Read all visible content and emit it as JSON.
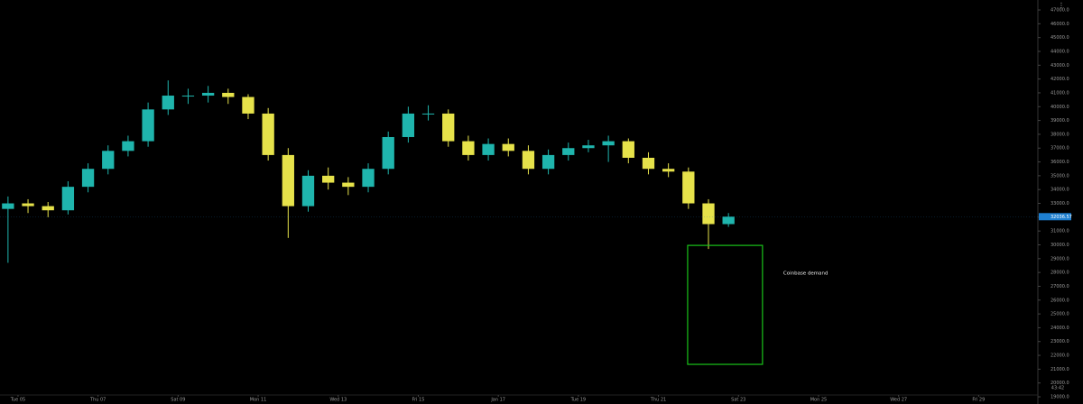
{
  "chart_data": {
    "type": "candlestick",
    "up_color": "#1fb5ad",
    "down_color": "#e6e24a",
    "x": [
      4.75,
      5.25,
      5.75,
      6.25,
      6.75,
      7.25,
      7.75,
      8.25,
      8.75,
      9.25,
      9.75,
      10.25,
      10.75,
      11.25,
      11.75,
      12.25,
      12.75,
      13.25,
      13.75,
      14.25,
      14.75,
      15.25,
      15.75,
      16.25,
      16.75,
      17.25,
      17.75,
      18.25,
      18.75,
      19.25,
      19.75,
      20.25,
      20.75,
      21.25,
      21.75,
      22.25,
      22.75
    ],
    "open": [
      32600,
      33000,
      32800,
      32500,
      34200,
      35500,
      36800,
      37500,
      39800,
      40800,
      40800,
      41000,
      40700,
      39500,
      36500,
      32800,
      35000,
      34500,
      34200,
      35500,
      37800,
      39500,
      39500,
      37500,
      36500,
      37300,
      36800,
      35500,
      36500,
      37000,
      37200,
      37500,
      36300,
      35500,
      35300,
      33000,
      31500
    ],
    "high": [
      33500,
      33300,
      33100,
      34600,
      35900,
      37200,
      37900,
      40300,
      41900,
      41300,
      41500,
      41300,
      40900,
      39900,
      37000,
      35400,
      35600,
      34900,
      35900,
      38200,
      40000,
      40100,
      39800,
      37900,
      37700,
      37700,
      37200,
      36900,
      37400,
      37600,
      37900,
      37700,
      36700,
      35900,
      35600,
      33300,
      32300
    ],
    "low": [
      28700,
      32300,
      32000,
      32200,
      33800,
      35100,
      36400,
      37100,
      39400,
      40200,
      40300,
      40200,
      39100,
      36100,
      30500,
      32400,
      34000,
      33600,
      33800,
      35100,
      37400,
      39000,
      37100,
      36100,
      36100,
      36400,
      35100,
      35100,
      36100,
      36700,
      36000,
      35900,
      35100,
      34900,
      32600,
      29700,
      31300
    ],
    "close": [
      33000,
      32800,
      32500,
      34200,
      35500,
      36800,
      37500,
      39800,
      40800,
      40800,
      41000,
      40700,
      39500,
      36500,
      32800,
      35000,
      34500,
      34200,
      35500,
      37800,
      39500,
      39500,
      37500,
      36500,
      37300,
      36800,
      35500,
      36500,
      37000,
      37200,
      37500,
      36300,
      35500,
      35300,
      33000,
      31500,
      32036.57
    ],
    "last_price": 32036.57,
    "xlim": [
      4.55,
      30.48
    ],
    "xticks": [
      {
        "value": 5,
        "label": "Tue 05"
      },
      {
        "value": 7,
        "label": "Thu 07"
      },
      {
        "value": 9,
        "label": "Sat 09"
      },
      {
        "value": 11,
        "label": "Mon 11"
      },
      {
        "value": 13,
        "label": "Wed 13"
      },
      {
        "value": 15,
        "label": "Fri 15"
      },
      {
        "value": 17,
        "label": "Jan 17"
      },
      {
        "value": 19,
        "label": "Tue 19"
      },
      {
        "value": 21,
        "label": "Thu 21"
      },
      {
        "value": 23,
        "label": "Sat 23"
      },
      {
        "value": 25,
        "label": "Mon 25"
      },
      {
        "value": 27,
        "label": "Wed 27"
      },
      {
        "value": 29,
        "label": "Fri 29"
      }
    ],
    "ylim": [
      18480,
      47720
    ],
    "yticks": [
      {
        "value": 47000,
        "label": "47000.0"
      },
      {
        "value": 46000,
        "label": "46000.0"
      },
      {
        "value": 45000,
        "label": "45000.0"
      },
      {
        "value": 44000,
        "label": "44000.0"
      },
      {
        "value": 43000,
        "label": "43000.0"
      },
      {
        "value": 42000,
        "label": "42000.0"
      },
      {
        "value": 41000,
        "label": "41000.0"
      },
      {
        "value": 40000,
        "label": "40000.0"
      },
      {
        "value": 39000,
        "label": "39000.0"
      },
      {
        "value": 38000,
        "label": "38000.0"
      },
      {
        "value": 37000,
        "label": "37000.0"
      },
      {
        "value": 36000,
        "label": "36000.0"
      },
      {
        "value": 35000,
        "label": "35000.0"
      },
      {
        "value": 34000,
        "label": "34000.0"
      },
      {
        "value": 33000,
        "label": "33000.0"
      },
      {
        "value": 32000,
        "label": "32000.0"
      },
      {
        "value": 31000,
        "label": "31000.0"
      },
      {
        "value": 30000,
        "label": "30000.0"
      },
      {
        "value": 29000,
        "label": "29000.0"
      },
      {
        "value": 28000,
        "label": "28000.0"
      },
      {
        "value": 27000,
        "label": "27000.0"
      },
      {
        "value": 26000,
        "label": "26000.0"
      },
      {
        "value": 25000,
        "label": "25000.0"
      },
      {
        "value": 24000,
        "label": "24000.0"
      },
      {
        "value": 23000,
        "label": "23000.0"
      },
      {
        "value": 22000,
        "label": "22000.0"
      },
      {
        "value": 21000,
        "label": "21000.0"
      },
      {
        "value": 20000,
        "label": "20000.0"
      },
      {
        "value": 19000,
        "label": "19000.0"
      }
    ],
    "zone": {
      "label": "Coinbase demand",
      "color": "#19c219",
      "xlim": [
        21.73,
        23.6
      ],
      "ylim": [
        21350,
        29960
      ]
    },
    "countdown": "43:42"
  }
}
